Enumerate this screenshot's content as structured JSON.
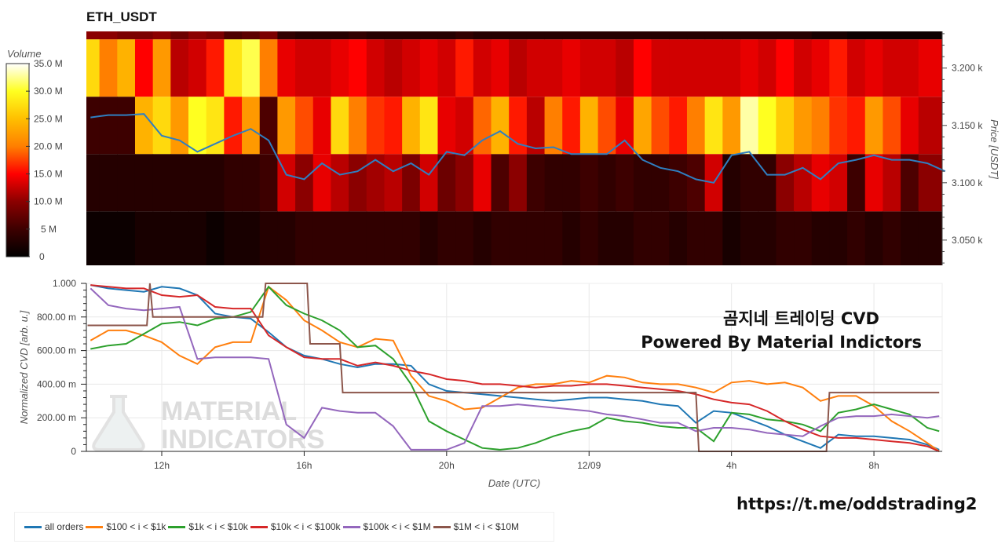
{
  "chart_data": [
    {
      "type": "heatmap",
      "title": "ETH_USDT",
      "ylabel": "Price [USDT]",
      "yticks": [
        "3.050 k",
        "3.100 k",
        "3.150 k",
        "3.200 k"
      ],
      "ytick_values": [
        3050,
        3100,
        3150,
        3200
      ],
      "ylim": [
        3028,
        3232
      ],
      "colorbar": {
        "title": "Volume",
        "ticks": [
          "0",
          "5 M",
          "10.0 M",
          "15.0 M",
          "20.0 M",
          "25.0 M",
          "30.0 M",
          "35.0 M"
        ],
        "range_millions": [
          0,
          35
        ],
        "colorscale": [
          "#000000",
          "#3d0000",
          "#8b0000",
          "#ff0000",
          "#ff7f00",
          "#ffbf00",
          "#ffff20",
          "#ffffff"
        ]
      },
      "time_start": "12/08 10:00",
      "time_step_minutes": 30,
      "price_levels": [
        3250,
        3200,
        3150,
        3100,
        3050
      ],
      "volume_millions": [
        [
          10,
          10,
          9,
          9,
          10,
          8,
          10,
          9,
          6,
          7,
          9,
          4,
          3,
          3,
          3,
          4,
          3,
          3,
          3,
          3,
          3,
          4,
          3,
          3,
          3,
          3,
          3,
          3,
          3,
          3,
          3,
          3,
          3,
          3,
          3,
          3,
          3,
          3,
          3,
          3,
          3,
          2,
          2,
          1,
          1,
          1,
          1,
          1
        ],
        [
          27,
          20,
          24,
          15,
          22,
          12,
          13,
          16,
          28,
          31,
          20,
          14,
          13,
          13,
          14,
          15,
          13,
          12,
          13,
          14,
          13,
          16,
          13,
          14,
          12,
          13,
          13,
          14,
          13,
          13,
          12,
          15,
          13,
          13,
          13,
          13,
          13,
          14,
          13,
          15,
          13,
          14,
          16,
          13,
          14,
          13,
          13,
          14
        ],
        [
          5,
          5,
          5,
          24,
          27,
          22,
          30,
          28,
          16,
          22,
          6,
          22,
          18,
          14,
          27,
          20,
          17,
          16,
          24,
          28,
          14,
          13,
          19,
          24,
          16,
          12,
          20,
          16,
          24,
          18,
          14,
          23,
          18,
          16,
          20,
          28,
          22,
          33,
          30,
          26,
          22,
          20,
          17,
          16,
          22,
          18,
          14,
          12
        ],
        [
          3,
          3,
          3,
          3,
          3,
          3,
          3,
          3,
          4,
          4,
          5,
          13,
          10,
          14,
          12,
          10,
          11,
          12,
          9,
          13,
          8,
          10,
          14,
          6,
          10,
          5,
          4,
          4,
          5,
          4,
          5,
          4,
          4,
          5,
          6,
          13,
          3,
          4,
          4,
          10,
          12,
          14,
          13,
          5,
          14,
          12,
          6,
          10
        ],
        [
          1,
          1,
          1,
          2,
          2,
          2,
          2,
          1,
          2,
          2,
          3,
          3,
          4,
          4,
          4,
          4,
          4,
          4,
          4,
          3,
          4,
          4,
          3,
          4,
          4,
          4,
          4,
          3,
          4,
          3,
          3,
          4,
          4,
          3,
          4,
          4,
          2,
          3,
          3,
          4,
          4,
          3,
          3,
          4,
          3,
          4,
          3,
          3
        ]
      ],
      "price_line": {
        "color": "#2f7fc1",
        "values": [
          3157,
          3159,
          3159,
          3160,
          3141,
          3137,
          3127,
          3134,
          3141,
          3147,
          3137,
          3107,
          3103,
          3117,
          3107,
          3110,
          3120,
          3110,
          3117,
          3107,
          3127,
          3124,
          3137,
          3145,
          3134,
          3130,
          3131,
          3125,
          3125,
          3125,
          3137,
          3120,
          3113,
          3110,
          3103,
          3100,
          3124,
          3127,
          3107,
          3107,
          3113,
          3103,
          3117,
          3120,
          3124,
          3120,
          3120,
          3117,
          3110
        ]
      }
    },
    {
      "type": "line",
      "xlabel": "Date (UTC)",
      "ylabel": "Normalized CVD [arb. u.]",
      "ylim": [
        0,
        1
      ],
      "yticks": [
        "0",
        "200.00 m",
        "400.00 m",
        "600.00 m",
        "800.00 m",
        "1.000"
      ],
      "xticks": [
        "12h",
        "16h",
        "20h",
        "12/09",
        "4h",
        "8h"
      ],
      "xtick_times": [
        "12/08 12:00",
        "12/08 16:00",
        "12/08 20:00",
        "12/09 00:00",
        "12/09 04:00",
        "12/09 08:00"
      ],
      "xlim": [
        "12/08 09:53",
        "12/09 09:55"
      ],
      "grid": true,
      "legend_position": "bottom",
      "x": [
        "12/08 10:00",
        "12/08 10:30",
        "12/08 11:00",
        "12/08 11:30",
        "12/08 12:00",
        "12/08 12:30",
        "12/08 13:00",
        "12/08 13:30",
        "12/08 14:00",
        "12/08 14:30",
        "12/08 15:00",
        "12/08 15:30",
        "12/08 16:00",
        "12/08 16:30",
        "12/08 17:00",
        "12/08 17:30",
        "12/08 18:00",
        "12/08 18:30",
        "12/08 19:00",
        "12/08 19:30",
        "12/08 20:00",
        "12/08 20:30",
        "12/08 21:00",
        "12/08 21:30",
        "12/08 22:00",
        "12/08 22:30",
        "12/08 23:00",
        "12/08 23:30",
        "12/09 00:00",
        "12/09 00:30",
        "12/09 01:00",
        "12/09 01:30",
        "12/09 02:00",
        "12/09 02:30",
        "12/09 03:00",
        "12/09 03:30",
        "12/09 04:00",
        "12/09 04:30",
        "12/09 05:00",
        "12/09 05:30",
        "12/09 06:00",
        "12/09 06:30",
        "12/09 07:00",
        "12/09 07:30",
        "12/09 08:00",
        "12/09 08:30",
        "12/09 09:00",
        "12/09 09:30",
        "12/09 09:50"
      ],
      "series": [
        {
          "name": "all orders",
          "color": "#1f77b4",
          "values": [
            0.99,
            0.97,
            0.96,
            0.95,
            0.98,
            0.97,
            0.93,
            0.82,
            0.8,
            0.79,
            0.71,
            0.62,
            0.57,
            0.55,
            0.52,
            0.5,
            0.52,
            0.52,
            0.51,
            0.4,
            0.36,
            0.35,
            0.34,
            0.33,
            0.32,
            0.31,
            0.3,
            0.31,
            0.32,
            0.32,
            0.31,
            0.3,
            0.28,
            0.27,
            0.17,
            0.24,
            0.23,
            0.19,
            0.15,
            0.1,
            0.06,
            0.02,
            0.1,
            0.09,
            0.09,
            0.08,
            0.07,
            0.04,
            0.01
          ]
        },
        {
          "name": "$100 < i < $1k",
          "color": "#ff7f0e",
          "values": [
            0.66,
            0.72,
            0.72,
            0.69,
            0.65,
            0.57,
            0.52,
            0.62,
            0.65,
            0.65,
            0.98,
            0.9,
            0.78,
            0.72,
            0.65,
            0.62,
            0.67,
            0.66,
            0.45,
            0.33,
            0.3,
            0.25,
            0.26,
            0.32,
            0.38,
            0.4,
            0.4,
            0.42,
            0.41,
            0.45,
            0.44,
            0.41,
            0.4,
            0.4,
            0.38,
            0.35,
            0.41,
            0.42,
            0.4,
            0.41,
            0.38,
            0.3,
            0.33,
            0.33,
            0.27,
            0.18,
            0.12,
            0.05,
            0.0
          ]
        },
        {
          "name": "$1k < i < $10k",
          "color": "#2ca02c",
          "values": [
            0.61,
            0.63,
            0.64,
            0.7,
            0.76,
            0.77,
            0.75,
            0.79,
            0.8,
            0.83,
            0.98,
            0.87,
            0.82,
            0.78,
            0.72,
            0.62,
            0.63,
            0.55,
            0.4,
            0.18,
            0.12,
            0.07,
            0.02,
            0.01,
            0.02,
            0.05,
            0.09,
            0.12,
            0.14,
            0.2,
            0.18,
            0.17,
            0.15,
            0.14,
            0.14,
            0.06,
            0.23,
            0.22,
            0.19,
            0.18,
            0.16,
            0.12,
            0.23,
            0.25,
            0.28,
            0.25,
            0.22,
            0.14,
            0.12
          ]
        },
        {
          "name": "$10k < i < $100k",
          "color": "#d62728",
          "values": [
            0.99,
            0.98,
            0.97,
            0.97,
            0.93,
            0.92,
            0.93,
            0.86,
            0.85,
            0.85,
            0.69,
            0.62,
            0.56,
            0.55,
            0.55,
            0.51,
            0.53,
            0.51,
            0.48,
            0.46,
            0.43,
            0.42,
            0.4,
            0.4,
            0.39,
            0.38,
            0.39,
            0.39,
            0.4,
            0.4,
            0.39,
            0.38,
            0.37,
            0.36,
            0.34,
            0.31,
            0.29,
            0.28,
            0.24,
            0.18,
            0.13,
            0.09,
            0.08,
            0.08,
            0.07,
            0.06,
            0.05,
            0.03,
            0.0
          ]
        },
        {
          "name": "$100k < i < $1M",
          "color": "#9467bd",
          "values": [
            0.97,
            0.87,
            0.85,
            0.84,
            0.85,
            0.86,
            0.55,
            0.56,
            0.56,
            0.56,
            0.55,
            0.16,
            0.08,
            0.26,
            0.24,
            0.23,
            0.23,
            0.15,
            0.01,
            0.01,
            0.01,
            0.05,
            0.27,
            0.27,
            0.28,
            0.27,
            0.26,
            0.25,
            0.24,
            0.22,
            0.21,
            0.19,
            0.17,
            0.17,
            0.12,
            0.14,
            0.14,
            0.13,
            0.11,
            0.1,
            0.09,
            0.15,
            0.2,
            0.21,
            0.21,
            0.22,
            0.21,
            0.2,
            0.21
          ]
        },
        {
          "name": "$1M < i < $10M",
          "color": "#8c564b",
          "step_points": [
            [
              "12/08 09:55",
              0.75
            ],
            [
              "12/08 11:35",
              0.75
            ],
            [
              "12/08 11:40",
              1.0
            ],
            [
              "12/08 11:45",
              0.8
            ],
            [
              "12/08 14:50",
              0.8
            ],
            [
              "12/08 14:55",
              1.0
            ],
            [
              "12/08 16:05",
              1.0
            ],
            [
              "12/08 16:10",
              0.64
            ],
            [
              "12/08 17:00",
              0.64
            ],
            [
              "12/08 17:05",
              0.35
            ],
            [
              "12/09 03:00",
              0.35
            ],
            [
              "12/09 03:05",
              0.0
            ],
            [
              "12/09 06:40",
              0.0
            ],
            [
              "12/09 06:45",
              0.35
            ],
            [
              "12/09 09:50",
              0.35
            ]
          ]
        }
      ]
    }
  ],
  "watermark": [
    "MATERIAL",
    "INDICATORS"
  ],
  "overlay": {
    "line1": "곰지네 트레이딩 CVD",
    "line2": "Powered By Material Indictors"
  },
  "url": "https://t.me/oddstrading2"
}
